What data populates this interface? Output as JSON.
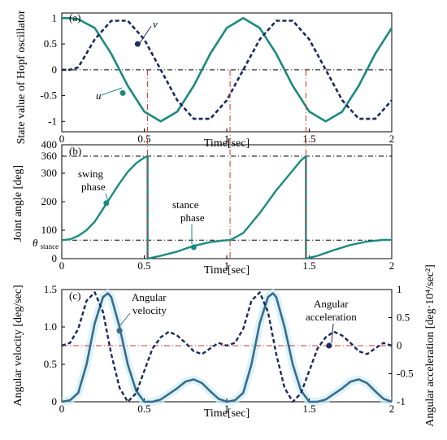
{
  "colors": {
    "teal": "#1b8a80",
    "navy": "#1a2a5e",
    "slate": "#3b6a8c",
    "red": "#d0352b",
    "refline": "#000000"
  },
  "chart_data": [
    {
      "type": "line",
      "panel_label": "(a)",
      "xlabel": "Time[sec]",
      "ylabel": "State value of Hopf oscillator",
      "xlim": [
        0,
        2
      ],
      "ylim": [
        -1.2,
        1.1
      ],
      "xticks": [
        "0",
        "0.5",
        "1",
        "1.5",
        "2"
      ],
      "yticks": [
        "-1",
        "-0.5",
        "0",
        "0.5",
        "1"
      ],
      "annotations": [
        "u",
        "v"
      ],
      "series": [
        {
          "name": "u",
          "style": "solid",
          "color": "teal",
          "x": [
            0,
            0.05,
            0.1,
            0.2,
            0.3,
            0.4,
            0.5,
            0.6,
            0.7,
            0.8,
            0.9,
            1.0,
            1.1,
            1.2,
            1.3,
            1.4,
            1.5,
            1.6,
            1.7,
            1.8,
            1.9,
            2.0
          ],
          "y": [
            1.0,
            1.0,
            0.98,
            0.81,
            0.31,
            -0.31,
            -0.81,
            -1.0,
            -0.81,
            -0.31,
            0.31,
            0.81,
            1.0,
            0.81,
            0.31,
            -0.31,
            -0.81,
            -1.0,
            -0.81,
            -0.31,
            0.31,
            0.81
          ]
        },
        {
          "name": "v",
          "style": "dashed",
          "color": "navy",
          "x": [
            0,
            0.05,
            0.1,
            0.2,
            0.3,
            0.4,
            0.5,
            0.6,
            0.7,
            0.8,
            0.9,
            1.0,
            1.1,
            1.2,
            1.3,
            1.4,
            1.5,
            1.6,
            1.7,
            1.8,
            1.9,
            2.0
          ],
          "y": [
            0.0,
            0.0,
            0.05,
            0.59,
            0.95,
            0.95,
            0.59,
            0.0,
            -0.59,
            -0.95,
            -0.95,
            -0.59,
            0.0,
            0.59,
            0.95,
            0.95,
            0.59,
            0.0,
            -0.59,
            -0.95,
            -0.95,
            -0.59
          ]
        }
      ],
      "vlines_x": [
        0.52,
        1.02,
        1.48
      ],
      "hline_y": 0
    },
    {
      "type": "line",
      "panel_label": "(b)",
      "xlabel": "Time[sec]",
      "ylabel": "Joint angle [deg]",
      "xlim": [
        0,
        2
      ],
      "ylim": [
        0,
        400
      ],
      "xticks": [
        "0",
        "0.5",
        "1",
        "1.5",
        "2"
      ],
      "yticks": [
        "0",
        "100",
        "200",
        "300",
        "360",
        "400"
      ],
      "theta_label": "θ",
      "theta_subscript": "stance",
      "theta_stance_y": 65,
      "hline_360": 360,
      "annotations": [
        "swing",
        "phase",
        "stance",
        "phase"
      ],
      "series": [
        {
          "name": "Joint angle",
          "color": "teal",
          "x": [
            0,
            0.05,
            0.1,
            0.15,
            0.2,
            0.25,
            0.3,
            0.35,
            0.4,
            0.45,
            0.5,
            0.52,
            0.52,
            0.6,
            0.7,
            0.8,
            0.9,
            1.0,
            1.02,
            1.1,
            1.2,
            1.3,
            1.4,
            1.45,
            1.48,
            1.48,
            1.55,
            1.65,
            1.75,
            1.85,
            1.95,
            2.0
          ],
          "y": [
            65,
            68,
            80,
            100,
            130,
            175,
            220,
            265,
            305,
            335,
            355,
            360,
            0,
            10,
            25,
            45,
            58,
            65,
            65,
            90,
            160,
            240,
            310,
            345,
            360,
            0,
            10,
            30,
            48,
            60,
            66,
            66
          ]
        }
      ],
      "markers": [
        {
          "x": 0.27,
          "y": 195
        },
        {
          "x": 0.8,
          "y": 40
        }
      ]
    },
    {
      "type": "line",
      "panel_label": "(c)",
      "xlabel": "Time[sec]",
      "ylabel": "Angular velocity [deg/sec]",
      "ylabel_right": "Angular acceleration [deg·10⁴/sec²]",
      "xlim": [
        0,
        2
      ],
      "ylim": [
        0,
        1.5
      ],
      "ylim_right": [
        -1,
        1
      ],
      "xticks": [
        "0",
        "0.5",
        "1",
        "1.5",
        "2"
      ],
      "yticks": [
        "0",
        "0.5",
        "1.0",
        "1.5"
      ],
      "yticks_right": [
        "-1",
        "-0.5",
        "0",
        "0.5",
        "1"
      ],
      "annotations": [
        "Angular",
        "velocity",
        "Angular",
        "acceleration"
      ],
      "series": [
        {
          "name": "Angular velocity",
          "style": "solid",
          "color": "slate",
          "axis": "left",
          "x": [
            0,
            0.05,
            0.1,
            0.15,
            0.2,
            0.25,
            0.28,
            0.3,
            0.35,
            0.4,
            0.45,
            0.5,
            0.55,
            0.6,
            0.7,
            0.75,
            0.8,
            0.85,
            0.9,
            0.95,
            1.0,
            1.05,
            1.1,
            1.15,
            1.2,
            1.25,
            1.28,
            1.3,
            1.35,
            1.4,
            1.45,
            1.5,
            1.55,
            1.6,
            1.7,
            1.75,
            1.8,
            1.85,
            1.9,
            1.95,
            2.0
          ],
          "y": [
            0,
            0.02,
            0.12,
            0.5,
            1.05,
            1.4,
            1.45,
            1.4,
            1.0,
            0.5,
            0.15,
            0.0,
            0.0,
            0.03,
            0.18,
            0.27,
            0.3,
            0.25,
            0.14,
            0.04,
            0,
            0.02,
            0.12,
            0.5,
            1.05,
            1.4,
            1.45,
            1.4,
            1.0,
            0.5,
            0.15,
            0.0,
            0.0,
            0.03,
            0.18,
            0.27,
            0.3,
            0.25,
            0.14,
            0.04,
            0
          ]
        },
        {
          "name": "Angular acceleration",
          "style": "dashed",
          "color": "navy",
          "axis": "right",
          "x": [
            0,
            0.05,
            0.1,
            0.15,
            0.2,
            0.25,
            0.3,
            0.35,
            0.4,
            0.45,
            0.5,
            0.55,
            0.6,
            0.65,
            0.7,
            0.75,
            0.8,
            0.85,
            0.9,
            0.95,
            1.0,
            1.05,
            1.1,
            1.15,
            1.2,
            1.25,
            1.3,
            1.35,
            1.4,
            1.45,
            1.5,
            1.55,
            1.6,
            1.65,
            1.7,
            1.75,
            1.8,
            1.85,
            1.9,
            1.95,
            2.0
          ],
          "y": [
            0,
            0.05,
            0.3,
            0.8,
            0.95,
            0.6,
            -0.15,
            -0.75,
            -1.0,
            -0.85,
            -0.45,
            -0.05,
            0.15,
            0.25,
            0.18,
            0.05,
            -0.1,
            -0.15,
            -0.05,
            0.05,
            0,
            0.05,
            0.3,
            0.8,
            0.95,
            0.6,
            -0.15,
            -0.75,
            -1.0,
            -0.85,
            -0.45,
            -0.05,
            0.15,
            0.25,
            0.18,
            0.05,
            -0.1,
            -0.15,
            -0.05,
            0.05,
            0
          ]
        }
      ],
      "hline_right_y": 0,
      "markers": [
        {
          "x": 0.35,
          "y": 0.95,
          "axis": "left",
          "color": "slate"
        },
        {
          "x": 1.62,
          "y": 0.0,
          "axis": "right",
          "color": "navy"
        }
      ]
    }
  ]
}
